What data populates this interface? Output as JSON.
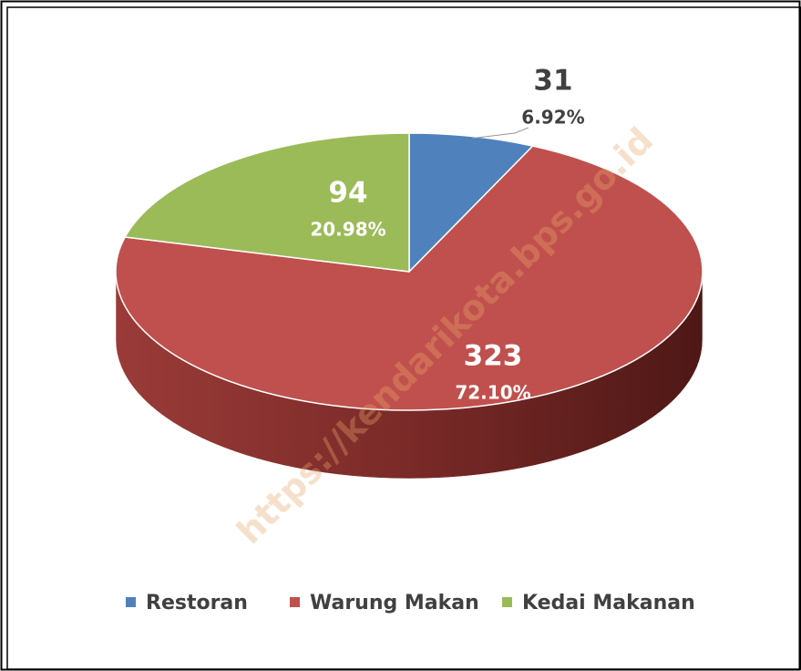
{
  "chart_data": {
    "type": "pie",
    "categories": [
      "Restoran",
      "Warung Makan",
      "Kedai Makanan"
    ],
    "values": [
      31,
      323,
      94
    ],
    "percentages": [
      6.92,
      72.1,
      20.98
    ],
    "percentage_labels": [
      "6.92%",
      "72.10%",
      "20.98%"
    ],
    "colors": [
      "#4f81bd",
      "#c0504d",
      "#9bbb59"
    ],
    "legend": "bottom",
    "watermark": "https://kendarikota.bps.go.id"
  }
}
